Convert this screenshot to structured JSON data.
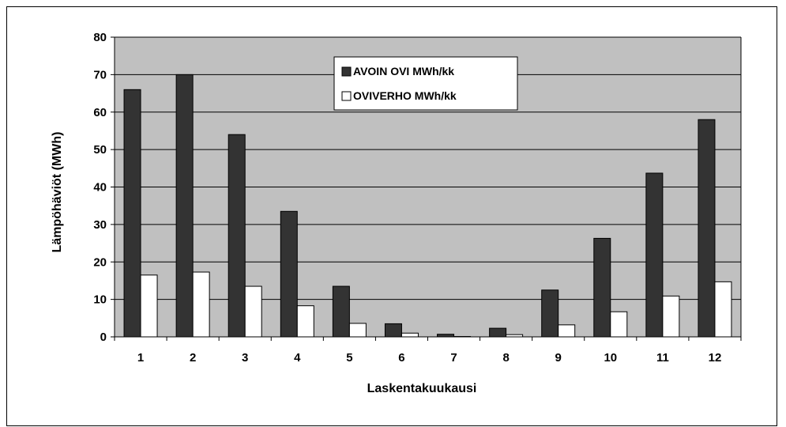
{
  "chart_data": {
    "type": "bar",
    "title": "",
    "xlabel": "Laskentakuukausi",
    "ylabel": "Lämpöhäviöt (MWh)",
    "ylim": [
      0,
      80
    ],
    "yticks": [
      "0",
      "10",
      "20",
      "30",
      "40",
      "50",
      "60",
      "70",
      "80"
    ],
    "grid": true,
    "legend_position": "top-center",
    "categories": [
      "1",
      "2",
      "3",
      "4",
      "5",
      "6",
      "7",
      "8",
      "9",
      "10",
      "11",
      "12"
    ],
    "series": [
      {
        "name": "AVOIN OVI MWh/kk",
        "color": "#333333",
        "values": [
          66,
          70,
          54,
          33.5,
          13.5,
          3.5,
          0.7,
          2.3,
          12.5,
          26.3,
          43.7,
          58
        ]
      },
      {
        "name": "OVIVERHO MWh/kk",
        "color": "#ffffff",
        "values": [
          16.5,
          17.3,
          13.5,
          8.3,
          3.6,
          1,
          0.1,
          0.6,
          3.2,
          6.7,
          10.9,
          14.7
        ]
      }
    ],
    "plot_background": "#c0c0c0"
  }
}
